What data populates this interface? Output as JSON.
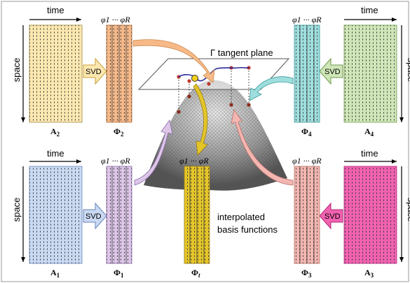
{
  "labels": {
    "time": "time",
    "space": "space",
    "svd": "SVD",
    "phi_range": "φ1 ··· φR",
    "tangent_plane": "Γ tangent plane",
    "interp_line1": "interpolated",
    "interp_line2": "basis functions"
  },
  "matrices": {
    "A1": {
      "name": "A",
      "sub": "1",
      "color": "#c9d9f2"
    },
    "A2": {
      "name": "A",
      "sub": "2",
      "color": "#fbe8b0"
    },
    "A3": {
      "name": "A",
      "sub": "3",
      "color": "#f062b0"
    },
    "A4": {
      "name": "A",
      "sub": "4",
      "color": "#cfe6b8"
    }
  },
  "bases": {
    "Phi1": {
      "name": "Φ",
      "sub": "1",
      "color": "#ddc6e8"
    },
    "Phi2": {
      "name": "Φ",
      "sub": "2",
      "color": "#f5b98a"
    },
    "Phi3": {
      "name": "Φ",
      "sub": "3",
      "color": "#f3b6b0"
    },
    "Phi4": {
      "name": "Φ",
      "sub": "4",
      "color": "#9fdede"
    },
    "Phit": {
      "name": "Φ",
      "sub": "t",
      "color": "#e3c52a"
    }
  }
}
